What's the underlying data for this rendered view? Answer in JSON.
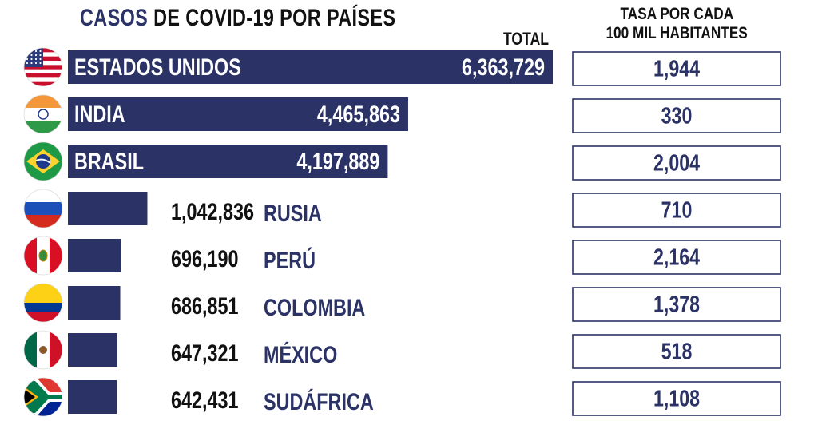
{
  "title": {
    "part1": "CASOS",
    "part2": "DE COVID-19 POR PAÍSES"
  },
  "total_header": "TOTAL",
  "rate_header": {
    "line1": "TASA POR CADA",
    "line2": "100 MIL HABITANTES"
  },
  "colors": {
    "bar": "#2b3266",
    "country_outside": "#2b3266",
    "value_text": "#111111",
    "box_border": "#2b3266"
  },
  "chart_data": {
    "type": "bar",
    "orientation": "horizontal",
    "title": "CASOS DE COVID-19 POR PAÍSES",
    "categories": [
      "ESTADOS UNIDOS",
      "INDIA",
      "BRASIL",
      "RUSIA",
      "PERÚ",
      "COLOMBIA",
      "MÉXICO",
      "SUDÁFRICA"
    ],
    "series": [
      {
        "name": "TOTAL",
        "values": [
          6363729,
          4465863,
          4197889,
          1042836,
          696190,
          686851,
          647321,
          642431
        ]
      },
      {
        "name": "TASA POR CADA 100 MIL HABITANTES",
        "values": [
          1944,
          330,
          2004,
          710,
          2164,
          1378,
          518,
          1108
        ]
      }
    ],
    "value_labels": [
      "6,363,729",
      "4,465,863",
      "4,197,889",
      "1,042,836",
      "696,190",
      "686,851",
      "647,321",
      "642,431"
    ],
    "rate_labels": [
      "1,944",
      "330",
      "2,004",
      "710",
      "2,164",
      "1,378",
      "518",
      "1,108"
    ],
    "flags": [
      "usa-flag-icon",
      "india-flag-icon",
      "brazil-flag-icon",
      "russia-flag-icon",
      "peru-flag-icon",
      "colombia-flag-icon",
      "mexico-flag-icon",
      "south-africa-flag-icon"
    ],
    "legend": "none",
    "grid": false
  }
}
